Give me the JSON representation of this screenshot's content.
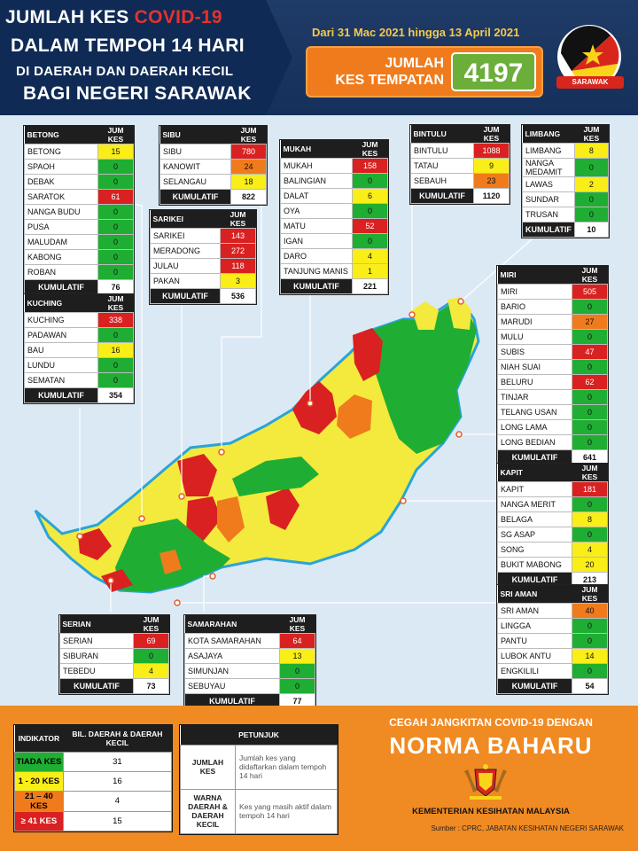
{
  "header": {
    "title_part1": "JUMLAH KES ",
    "title_highlight": "COVID-19",
    "title_line2": "DALAM TEMPOH 14 HARI",
    "title_line3": "DI DAERAH DAN DAERAH KECIL",
    "title_line4": "BAGI NEGERI SARAWAK",
    "date_range": "Dari 31 Mac 2021 hingga 13 April 2021",
    "total_label_1": "JUMLAH",
    "total_label_2": "KES TEMPATAN",
    "total_value": "4197",
    "logo_label": "SARAWAK"
  },
  "colors": {
    "green": "#1fae33",
    "yellow": "#f9ee17",
    "orange": "#f07b1d",
    "red": "#d92121"
  },
  "divisions": {
    "betong": {
      "name": "BETONG",
      "col": "JUM KES",
      "rows": [
        [
          "BETONG",
          "15",
          "y"
        ],
        [
          "SPAOH",
          "0",
          "g"
        ],
        [
          "DEBAK",
          "0",
          "g"
        ],
        [
          "SARATOK",
          "61",
          "r"
        ],
        [
          "NANGA BUDU",
          "0",
          "g"
        ],
        [
          "PUSA",
          "0",
          "g"
        ],
        [
          "MALUDAM",
          "0",
          "g"
        ],
        [
          "KABONG",
          "0",
          "g"
        ],
        [
          "ROBAN",
          "0",
          "g"
        ]
      ],
      "total_label": "KUMULATIF",
      "total": "76"
    },
    "sibu": {
      "name": "SIBU",
      "col": "JUM KES",
      "rows": [
        [
          "SIBU",
          "780",
          "r"
        ],
        [
          "KANOWIT",
          "24",
          "o"
        ],
        [
          "SELANGAU",
          "18",
          "y"
        ]
      ],
      "total_label": "KUMULATIF",
      "total": "822"
    },
    "mukah": {
      "name": "MUKAH",
      "col": "JUM KES",
      "rows": [
        [
          "MUKAH",
          "158",
          "r"
        ],
        [
          "BALINGIAN",
          "0",
          "g"
        ],
        [
          "DALAT",
          "6",
          "y"
        ],
        [
          "OYA",
          "0",
          "g"
        ],
        [
          "MATU",
          "52",
          "r"
        ],
        [
          "IGAN",
          "0",
          "g"
        ],
        [
          "DARO",
          "4",
          "y"
        ],
        [
          "TANJUNG MANIS",
          "1",
          "y"
        ]
      ],
      "total_label": "KUMULATIF",
      "total": "221"
    },
    "bintulu": {
      "name": "BINTULU",
      "col": "JUM KES",
      "rows": [
        [
          "BINTULU",
          "1088",
          "r"
        ],
        [
          "TATAU",
          "9",
          "y"
        ],
        [
          "SEBAUH",
          "23",
          "o"
        ]
      ],
      "total_label": "KUMULATIF",
      "total": "1120"
    },
    "limbang": {
      "name": "LIMBANG",
      "col": "JUM KES",
      "rows": [
        [
          "LIMBANG",
          "8",
          "y"
        ],
        [
          "NANGA MEDAMIT",
          "0",
          "g"
        ],
        [
          "LAWAS",
          "2",
          "y"
        ],
        [
          "SUNDAR",
          "0",
          "g"
        ],
        [
          "TRUSAN",
          "0",
          "g"
        ]
      ],
      "total_label": "KUMULATIF",
      "total": "10"
    },
    "sarikei": {
      "name": "SARIKEI",
      "col": "JUM KES",
      "rows": [
        [
          "SARIKEI",
          "143",
          "r"
        ],
        [
          "MERADONG",
          "272",
          "r"
        ],
        [
          "JULAU",
          "118",
          "r"
        ],
        [
          "PAKAN",
          "3",
          "y"
        ]
      ],
      "total_label": "KUMULATIF",
      "total": "536"
    },
    "kuching": {
      "name": "KUCHING",
      "col": "JUM KES",
      "rows": [
        [
          "KUCHING",
          "338",
          "r"
        ],
        [
          "PADAWAN",
          "0",
          "g"
        ],
        [
          "BAU",
          "16",
          "y"
        ],
        [
          "LUNDU",
          "0",
          "g"
        ],
        [
          "SEMATAN",
          "0",
          "g"
        ]
      ],
      "total_label": "KUMULATIF",
      "total": "354"
    },
    "miri": {
      "name": "MIRI",
      "col": "JUM KES",
      "rows": [
        [
          "MIRI",
          "505",
          "r"
        ],
        [
          "BARIO",
          "0",
          "g"
        ],
        [
          "MARUDI",
          "27",
          "o"
        ],
        [
          "MULU",
          "0",
          "g"
        ],
        [
          "SUBIS",
          "47",
          "r"
        ],
        [
          "NIAH SUAI",
          "0",
          "g"
        ],
        [
          "BELURU",
          "62",
          "r"
        ],
        [
          "TINJAR",
          "0",
          "g"
        ],
        [
          "TELANG USAN",
          "0",
          "g"
        ],
        [
          "LONG LAMA",
          "0",
          "g"
        ],
        [
          "LONG BEDIAN",
          "0",
          "g"
        ]
      ],
      "total_label": "KUMULATIF",
      "total": "641"
    },
    "kapit": {
      "name": "KAPIT",
      "col": "JUM KES",
      "rows": [
        [
          "KAPIT",
          "181",
          "r"
        ],
        [
          "NANGA MERIT",
          "0",
          "g"
        ],
        [
          "BELAGA",
          "8",
          "y"
        ],
        [
          "SG ASAP",
          "0",
          "g"
        ],
        [
          "SONG",
          "4",
          "y"
        ],
        [
          "BUKIT MABONG",
          "20",
          "y"
        ]
      ],
      "total_label": "KUMULATIF",
      "total": "213"
    },
    "sriaman": {
      "name": "SRI AMAN",
      "col": "JUM KES",
      "rows": [
        [
          "SRI AMAN",
          "40",
          "o"
        ],
        [
          "LINGGA",
          "0",
          "g"
        ],
        [
          "PANTU",
          "0",
          "g"
        ],
        [
          "LUBOK ANTU",
          "14",
          "y"
        ],
        [
          "ENGKILILI",
          "0",
          "g"
        ]
      ],
      "total_label": "KUMULATIF",
      "total": "54"
    },
    "serian": {
      "name": "SERIAN",
      "col": "JUM KES",
      "rows": [
        [
          "SERIAN",
          "69",
          "r"
        ],
        [
          "SIBURAN",
          "0",
          "g"
        ],
        [
          "TEBEDU",
          "4",
          "y"
        ]
      ],
      "total_label": "KUMULATIF",
      "total": "73"
    },
    "samarahan": {
      "name": "SAMARAHAN",
      "col": "JUM KES",
      "rows": [
        [
          "KOTA SAMARAHAN",
          "64",
          "r"
        ],
        [
          "ASAJAYA",
          "13",
          "y"
        ],
        [
          "SIMUNJAN",
          "0",
          "g"
        ],
        [
          "SEBUYAU",
          "0",
          "g"
        ]
      ],
      "total_label": "KUMULATIF",
      "total": "77"
    }
  },
  "indicator": {
    "col1": "INDIKATOR",
    "col2": "BIL. DAERAH & DAERAH KECIL",
    "rows": [
      [
        "TIADA KES",
        "31",
        "g"
      ],
      [
        "1 - 20 KES",
        "16",
        "y"
      ],
      [
        "21 – 40 KES",
        "4",
        "o"
      ],
      [
        "≥ 41 KES",
        "15",
        "r"
      ]
    ]
  },
  "petunjuk": {
    "title": "PETUNJUK",
    "rows": [
      [
        "JUMLAH KES",
        "Jumlah kes yang didaftarkan dalam tempoh 14 hari"
      ],
      [
        "WARNA DAERAH & DAERAH KECIL",
        "Kes yang masih aktif dalam tempoh 14 hari"
      ]
    ]
  },
  "footer": {
    "cegah": "CEGAH JANGKITAN COVID-19 DENGAN",
    "norma": "NORMA BAHARU",
    "ministry": "KEMENTERIAN KESIHATAN MALAYSIA",
    "source": "Sumber : CPRC, JABATAN KESIHATAN NEGERI SARAWAK"
  }
}
